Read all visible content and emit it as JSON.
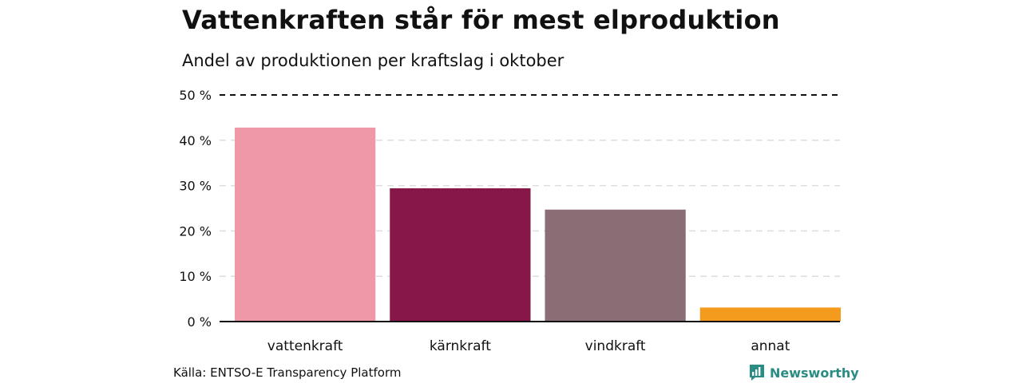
{
  "title": "Vattenkraften står för mest elproduktion",
  "subtitle": "Andel av produktionen per kraftslag i oktober",
  "source": "Källa: ENTSO-E Transparency Platform",
  "brand": {
    "name": "Newsworthy",
    "color": "#2a8c82",
    "icon": "bar-chart-logo-icon"
  },
  "chart_data": {
    "type": "bar",
    "categories": [
      "vattenkraft",
      "kärnkraft",
      "vindkraft",
      "annat"
    ],
    "values": [
      42.8,
      29.4,
      24.7,
      3.1
    ],
    "colors": [
      "#ee98a8",
      "#861748",
      "#8a6e76",
      "#f49b1e"
    ],
    "ylim": [
      0,
      50
    ],
    "yticks": [
      0,
      10,
      20,
      30,
      40,
      50
    ],
    "ytick_labels": [
      "0 %",
      "10 %",
      "20 %",
      "30 %",
      "40 %",
      "50 %"
    ],
    "grid": true,
    "xlabel": "",
    "ylabel": ""
  }
}
